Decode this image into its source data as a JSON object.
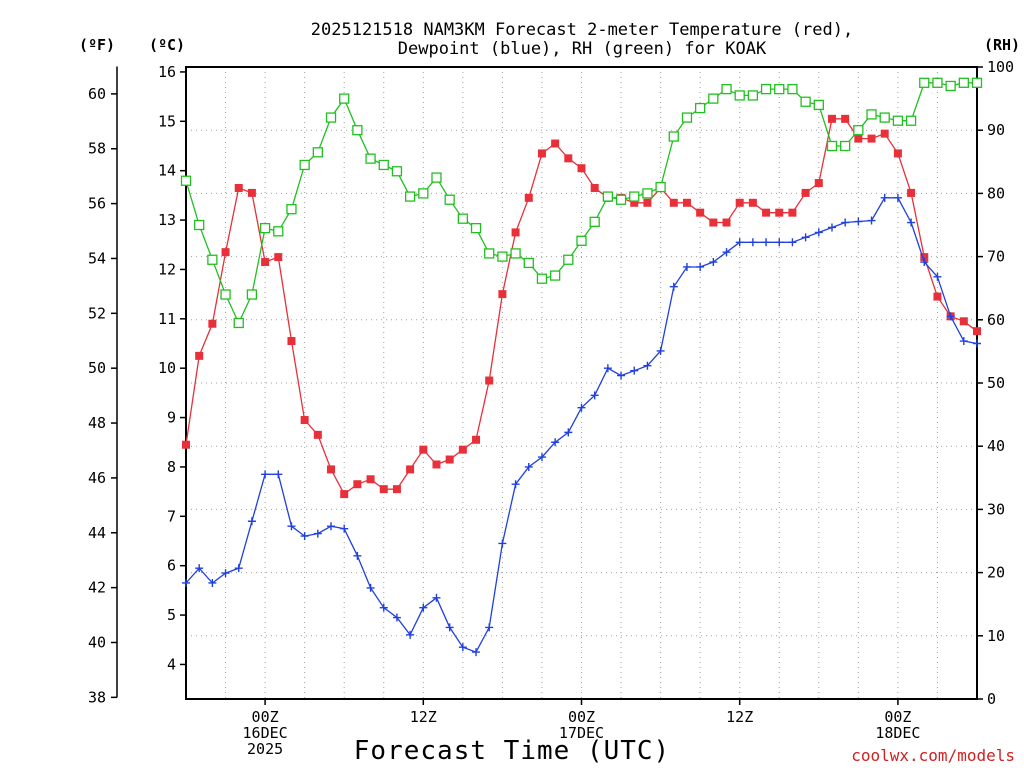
{
  "title_line1": "2025121518 NAM3KM Forecast 2-meter Temperature (red),",
  "title_line2": "Dewpoint (blue), RH (green) for KOAK",
  "unit_f": "(ºF)",
  "unit_c": "(ºC)",
  "unit_rh": "(RH)",
  "x_axis_title": "Forecast Time (UTC)",
  "credit": "coolwx.com/models",
  "x_ticks": [
    {
      "hour": 6,
      "lines": [
        "00Z",
        "16DEC",
        "2025"
      ]
    },
    {
      "hour": 18,
      "lines": [
        "12Z"
      ]
    },
    {
      "hour": 30,
      "lines": [
        "00Z",
        "17DEC"
      ]
    },
    {
      "hour": 42,
      "lines": [
        "12Z"
      ]
    },
    {
      "hour": 54,
      "lines": [
        "00Z",
        "18DEC"
      ]
    }
  ],
  "colors": {
    "temperature": "#e8303a",
    "dewpoint": "#2040e0",
    "rh": "#20c020",
    "grid": "#a0a0a0",
    "credit": "#d02020"
  },
  "chart_data": {
    "type": "line",
    "title": "2025121518 NAM3KM Forecast 2-meter Temperature (red), Dewpoint (blue), RH (green) for KOAK",
    "xlabel": "Forecast Time (UTC)",
    "ylabel_left_celsius": "(ºC)",
    "ylabel_left_fahrenheit": "(ºF)",
    "ylabel_right": "(RH)",
    "x_hours_from_1518Z": [
      0,
      1,
      2,
      3,
      4,
      5,
      6,
      7,
      8,
      9,
      10,
      11,
      12,
      13,
      14,
      15,
      16,
      17,
      18,
      19,
      20,
      21,
      22,
      23,
      24,
      25,
      26,
      27,
      28,
      29,
      30,
      31,
      32,
      33,
      34,
      35,
      36,
      37,
      38,
      39,
      40,
      41,
      42,
      43,
      44,
      45,
      46,
      47,
      48,
      49,
      50,
      51,
      52,
      53,
      54,
      55,
      56,
      57,
      58,
      59,
      60
    ],
    "xlim": [
      0,
      60
    ],
    "y_celsius_lim": [
      3.3,
      16.1
    ],
    "y_celsius_ticks": [
      4,
      5,
      6,
      7,
      8,
      9,
      10,
      11,
      12,
      13,
      14,
      15,
      16
    ],
    "y_fahrenheit_ticks": [
      38,
      40,
      42,
      44,
      46,
      48,
      50,
      52,
      54,
      56,
      58,
      60
    ],
    "y_rh_lim": [
      0,
      100
    ],
    "y_rh_ticks": [
      0,
      10,
      20,
      30,
      40,
      50,
      60,
      70,
      80,
      90,
      100
    ],
    "series": [
      {
        "name": "Temperature (red)",
        "unit": "C",
        "marker": "filled-square",
        "values": [
          8.45,
          10.25,
          10.9,
          12.35,
          13.65,
          13.55,
          12.15,
          12.25,
          10.55,
          8.95,
          8.65,
          7.95,
          7.45,
          7.65,
          7.75,
          7.55,
          7.55,
          7.95,
          8.35,
          8.05,
          8.15,
          8.35,
          8.55,
          9.75,
          11.5,
          12.75,
          13.45,
          14.35,
          14.55,
          14.25,
          14.05,
          13.65,
          13.45,
          13.45,
          13.35,
          13.35,
          13.65,
          13.35,
          13.35,
          13.15,
          12.95,
          12.95,
          13.35,
          13.35,
          13.15,
          13.15,
          13.15,
          13.55,
          13.75,
          15.05,
          15.05,
          14.65,
          14.65,
          14.75,
          14.35,
          13.55,
          12.25,
          11.45,
          11.05,
          10.95,
          10.75
        ]
      },
      {
        "name": "Dewpoint (blue)",
        "unit": "C",
        "marker": "plus",
        "values": [
          5.65,
          5.95,
          5.65,
          5.85,
          5.95,
          6.9,
          7.85,
          7.85,
          6.8,
          6.6,
          6.65,
          6.8,
          6.75,
          6.2,
          5.55,
          5.15,
          4.95,
          4.6,
          5.15,
          5.35,
          4.75,
          4.35,
          4.25,
          4.75,
          6.45,
          7.65,
          8.0,
          8.2,
          8.5,
          8.7,
          9.2,
          9.45,
          10.0,
          9.85,
          9.95,
          10.05,
          10.35,
          11.65,
          12.05,
          12.05,
          12.15,
          12.35,
          12.55,
          12.55,
          12.55,
          12.55,
          12.55,
          12.65,
          12.75,
          12.85,
          12.95,
          12.97,
          12.99,
          13.45,
          13.45,
          12.95,
          12.15,
          11.85,
          11.05,
          10.55,
          10.5
        ]
      },
      {
        "name": "RH (green)",
        "unit": "%",
        "marker": "open-square",
        "values": [
          82,
          75,
          69.5,
          64,
          59.5,
          64,
          74.5,
          74,
          77.5,
          84.5,
          86.5,
          92,
          95,
          90,
          85.5,
          84.5,
          83.5,
          79.5,
          80,
          82.5,
          79,
          76,
          74.5,
          70.5,
          70,
          70.5,
          69,
          66.5,
          67,
          69.5,
          72.5,
          75.5,
          79.5,
          79,
          79.5,
          80,
          81,
          89,
          92,
          93.5,
          95,
          96.5,
          95.5,
          95.5,
          96.5,
          96.5,
          96.5,
          94.5,
          94,
          87.5,
          87.5,
          90,
          92.5,
          92,
          91.5,
          91.5,
          97.5,
          97.5,
          97,
          97.5,
          97.5
        ]
      }
    ]
  }
}
